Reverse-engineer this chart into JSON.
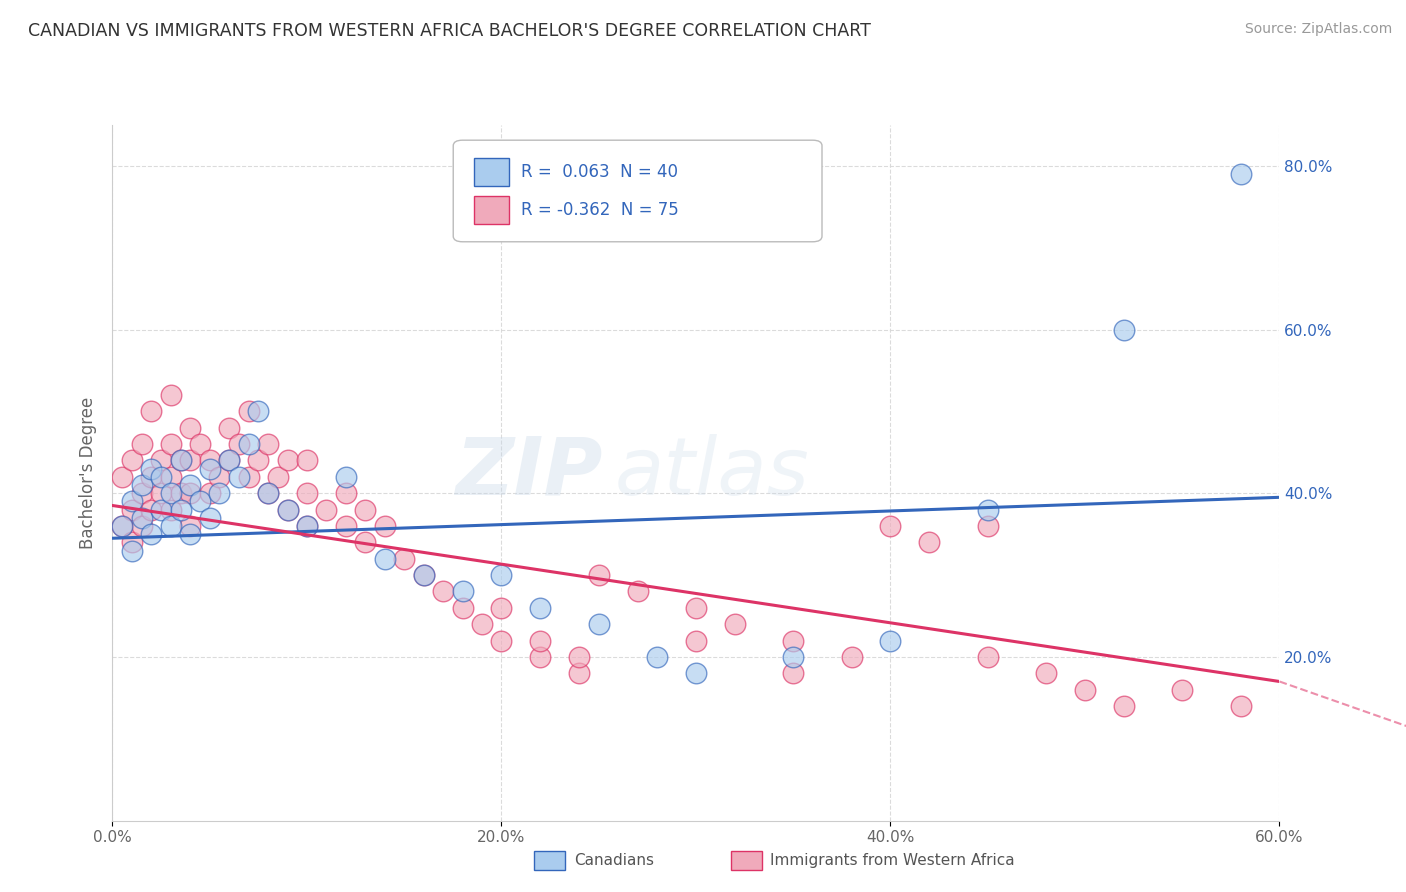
{
  "title": "CANADIAN VS IMMIGRANTS FROM WESTERN AFRICA BACHELOR'S DEGREE CORRELATION CHART",
  "source": "Source: ZipAtlas.com",
  "ylabel": "Bachelor's Degree",
  "xlim": [
    0.0,
    0.6
  ],
  "ylim": [
    0.0,
    0.85
  ],
  "xtick_vals": [
    0.0,
    0.2,
    0.4,
    0.6
  ],
  "ytick_vals": [
    0.2,
    0.4,
    0.6,
    0.8
  ],
  "background_color": "#ffffff",
  "grid_color": "#d8d8d8",
  "canadian_color": "#aaccee",
  "immigrant_color": "#f0aabb",
  "canadian_line_color": "#3366bb",
  "immigrant_line_color": "#dd3366",
  "legend_R_canadian": "0.063",
  "legend_N_canadian": "40",
  "legend_R_immigrant": "-0.362",
  "legend_N_immigrant": "75",
  "watermark_zip": "ZIP",
  "watermark_atlas": "atlas",
  "canadians_label": "Canadians",
  "immigrants_label": "Immigrants from Western Africa",
  "canadian_scatter_x": [
    0.005,
    0.01,
    0.01,
    0.015,
    0.015,
    0.02,
    0.02,
    0.025,
    0.025,
    0.03,
    0.03,
    0.035,
    0.035,
    0.04,
    0.04,
    0.045,
    0.05,
    0.05,
    0.055,
    0.06,
    0.065,
    0.07,
    0.075,
    0.08,
    0.09,
    0.1,
    0.12,
    0.14,
    0.16,
    0.18,
    0.2,
    0.22,
    0.25,
    0.28,
    0.3,
    0.35,
    0.4,
    0.45,
    0.52,
    0.58
  ],
  "canadian_scatter_y": [
    0.36,
    0.39,
    0.33,
    0.41,
    0.37,
    0.43,
    0.35,
    0.38,
    0.42,
    0.4,
    0.36,
    0.44,
    0.38,
    0.41,
    0.35,
    0.39,
    0.37,
    0.43,
    0.4,
    0.44,
    0.42,
    0.46,
    0.5,
    0.4,
    0.38,
    0.36,
    0.42,
    0.32,
    0.3,
    0.28,
    0.3,
    0.26,
    0.24,
    0.2,
    0.18,
    0.2,
    0.22,
    0.38,
    0.6,
    0.79
  ],
  "immigrant_scatter_x": [
    0.005,
    0.005,
    0.01,
    0.01,
    0.01,
    0.015,
    0.015,
    0.015,
    0.02,
    0.02,
    0.02,
    0.025,
    0.025,
    0.03,
    0.03,
    0.03,
    0.03,
    0.035,
    0.035,
    0.04,
    0.04,
    0.04,
    0.04,
    0.045,
    0.05,
    0.05,
    0.055,
    0.06,
    0.06,
    0.065,
    0.07,
    0.07,
    0.075,
    0.08,
    0.08,
    0.085,
    0.09,
    0.09,
    0.1,
    0.1,
    0.1,
    0.11,
    0.12,
    0.12,
    0.13,
    0.13,
    0.14,
    0.15,
    0.16,
    0.17,
    0.18,
    0.19,
    0.2,
    0.22,
    0.24,
    0.25,
    0.27,
    0.3,
    0.32,
    0.35,
    0.38,
    0.4,
    0.42,
    0.45,
    0.48,
    0.5,
    0.52,
    0.55,
    0.58,
    0.45,
    0.2,
    0.22,
    0.24,
    0.3,
    0.35
  ],
  "immigrant_scatter_y": [
    0.36,
    0.42,
    0.38,
    0.44,
    0.34,
    0.4,
    0.46,
    0.36,
    0.42,
    0.38,
    0.5,
    0.44,
    0.4,
    0.46,
    0.42,
    0.38,
    0.52,
    0.44,
    0.4,
    0.48,
    0.44,
    0.4,
    0.36,
    0.46,
    0.44,
    0.4,
    0.42,
    0.48,
    0.44,
    0.46,
    0.42,
    0.5,
    0.44,
    0.4,
    0.46,
    0.42,
    0.38,
    0.44,
    0.4,
    0.36,
    0.44,
    0.38,
    0.36,
    0.4,
    0.34,
    0.38,
    0.36,
    0.32,
    0.3,
    0.28,
    0.26,
    0.24,
    0.22,
    0.2,
    0.18,
    0.3,
    0.28,
    0.26,
    0.24,
    0.22,
    0.2,
    0.36,
    0.34,
    0.2,
    0.18,
    0.16,
    0.14,
    0.16,
    0.14,
    0.36,
    0.26,
    0.22,
    0.2,
    0.22,
    0.18
  ],
  "canadian_trend": [
    0.0,
    0.6,
    0.345,
    0.395
  ],
  "immigrant_trend": [
    0.0,
    0.6,
    0.385,
    0.17
  ],
  "immigrant_trend_ext": [
    0.6,
    0.72,
    0.17,
    0.07
  ]
}
